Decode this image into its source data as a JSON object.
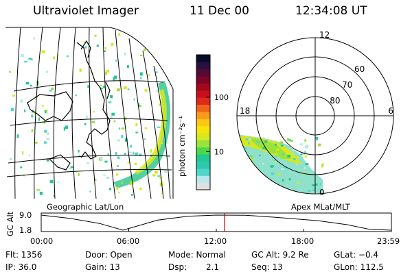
{
  "header": {
    "instrument": "Ultraviolet Imager",
    "date": "11 Dec 00",
    "time": "12:34:08 UT"
  },
  "panels": {
    "left_caption": "Geographic Lat/Lon",
    "right_caption": "Apex MLat/MLT"
  },
  "colorbar": {
    "unit_label": "photon cm⁻²s⁻¹",
    "ticks": [
      {
        "label": "100",
        "value": 100
      },
      {
        "label": "10",
        "value": 10
      }
    ],
    "colors": [
      "#e0e0e0",
      "#b8e8ec",
      "#4fd6c8",
      "#2ec8b0",
      "#22c890",
      "#4cd84c",
      "#9ce23c",
      "#d6e820",
      "#f4e60c",
      "#fcc814",
      "#fa9a1c",
      "#f0641c",
      "#de2a1c",
      "#c8101c",
      "#a0081c",
      "#7c0424",
      "#540a34",
      "#2a1040",
      "#0a0a2a"
    ]
  },
  "polar": {
    "mlt_labels": [
      {
        "text": "12",
        "mlt": 12
      },
      {
        "text": "18",
        "mlt": 18
      },
      {
        "text": "6",
        "mlt": 6
      },
      {
        "text": "0",
        "mlt": 0
      }
    ],
    "lat_labels": [
      {
        "text": "60",
        "mlat": 60
      },
      {
        "text": "70",
        "mlat": 70
      },
      {
        "text": "80",
        "mlat": 80
      }
    ]
  },
  "chart_data": {
    "type": "line",
    "ylabel": "GC Alt",
    "yticks": [
      "9.0",
      "1.8"
    ],
    "ylim": [
      1.8,
      9.0
    ],
    "xticks": [
      "00:00",
      "06:00",
      "12:00",
      "18:00",
      "23:59"
    ],
    "x_hours": [
      0,
      2,
      4,
      5.6,
      8,
      10,
      12,
      14,
      16,
      19,
      21,
      22.5,
      23.98
    ],
    "altitude_re": [
      9.0,
      7.4,
      5.0,
      1.8,
      6.6,
      8.4,
      9.0,
      8.9,
      8.0,
      6.3,
      4.4,
      2.2,
      1.8
    ],
    "marker_hour": 12.57
  },
  "footer": {
    "flt": "Flt: 1356",
    "ip": "IP: 36.0",
    "door": "Door: Open",
    "gain": "Gain: 13",
    "mode": "Mode: Normal",
    "dsp_label": "Dsp:",
    "dsp_value": "2.1",
    "gcalt": "GC Alt: 9.2 Re",
    "seq": "Seq: 13",
    "glat": "GLat:  −0.4",
    "glon": "GLon: 112.5"
  }
}
